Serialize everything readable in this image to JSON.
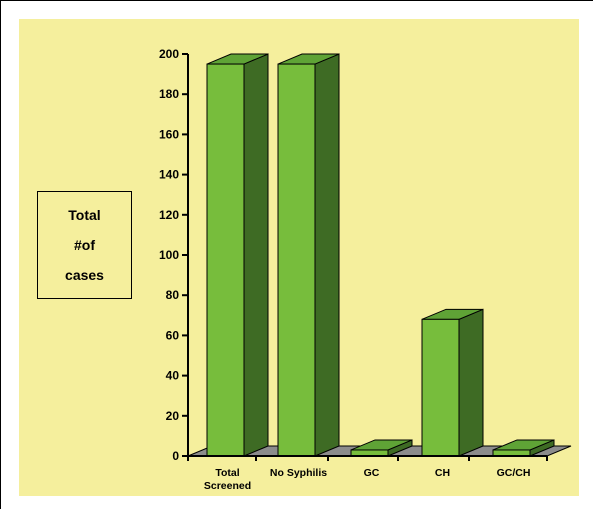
{
  "chart_data": {
    "type": "bar",
    "categories": [
      "Total Screened",
      "No Syphilis",
      "GC",
      "CH",
      "GC/CH"
    ],
    "category_lines": [
      [
        "Total",
        "Screened"
      ],
      [
        "No Syphilis"
      ],
      [
        "GC"
      ],
      [
        "CH"
      ],
      [
        "GC/CH"
      ]
    ],
    "values": [
      195,
      195,
      3,
      68,
      3
    ],
    "ylabel_lines": [
      "Total",
      "#of",
      "cases"
    ],
    "ylim": [
      0,
      200
    ],
    "yticks": [
      0,
      20,
      40,
      60,
      80,
      100,
      120,
      140,
      160,
      180,
      200
    ],
    "grid": false,
    "legend": "none",
    "three_d": true
  },
  "colors": {
    "background": "#f5ef9d",
    "bar_front": "#77bd3c",
    "bar_top": "#5fa336",
    "bar_side": "#3e6b24",
    "floor": "#8c8c8c",
    "axis": "#000000"
  }
}
